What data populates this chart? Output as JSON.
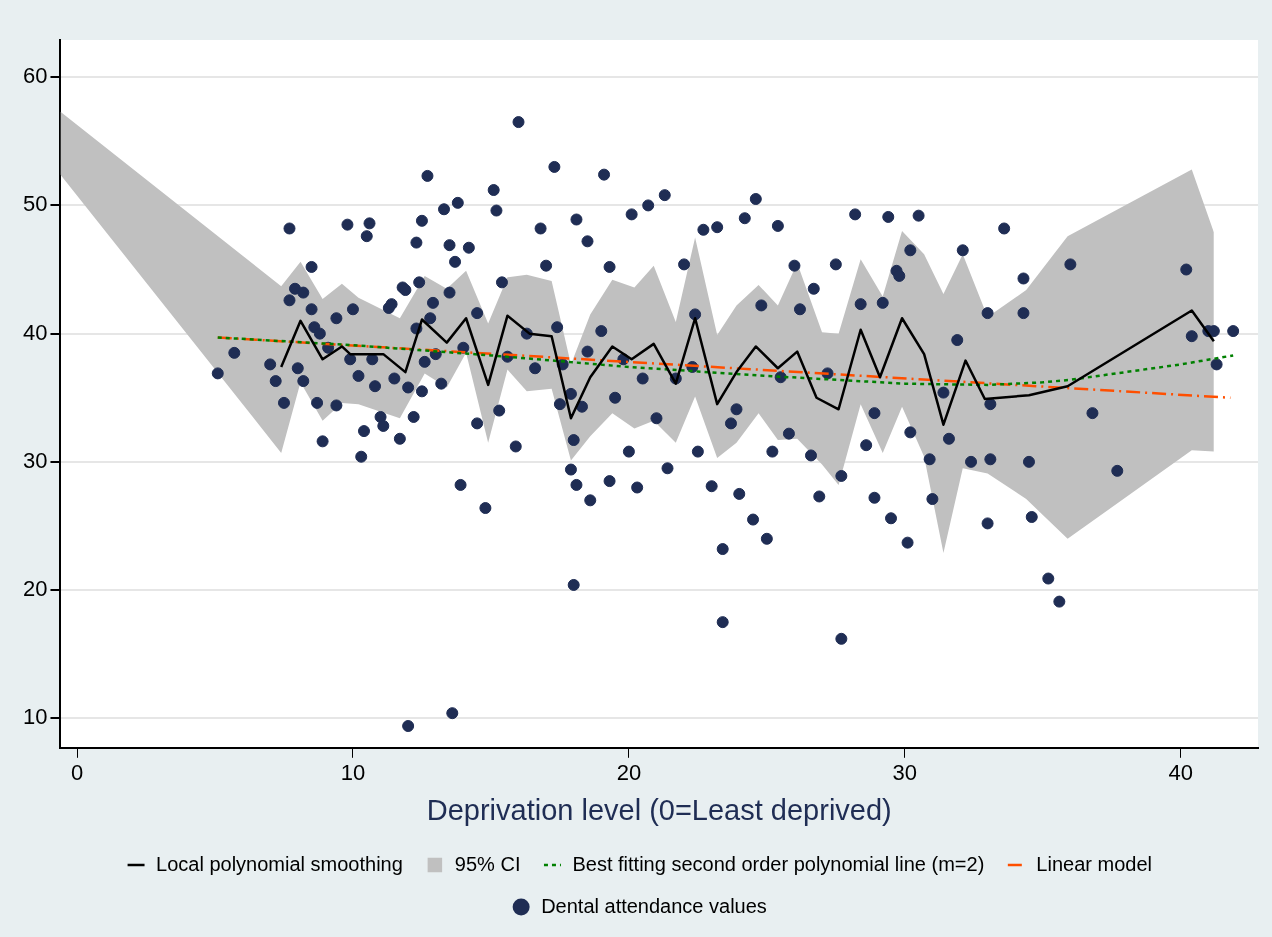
{
  "chart_data": {
    "type": "scatter",
    "xlabel": "Deprivation level (0=Least deprived)",
    "xlim": [
      -0.6,
      42.8
    ],
    "ylim": [
      7.7,
      62.9
    ],
    "xticks": [
      0,
      10,
      20,
      30,
      40
    ],
    "yticks": [
      10,
      20,
      30,
      40,
      50,
      60
    ],
    "grid": "y",
    "legend": "bottom",
    "series": [
      {
        "name": "Local polynomial smoothing",
        "type": "line",
        "color": "#000000",
        "line_style": "solid",
        "x": [
          7.4,
          8.1,
          8.9,
          9.6,
          9.9,
          11.1,
          11.9,
          12.5,
          13.4,
          14.1,
          14.9,
          15.6,
          16.4,
          17.2,
          17.9,
          18.6,
          19.4,
          20.1,
          20.9,
          21.7,
          22.4,
          23.2,
          23.9,
          24.6,
          25.4,
          26.1,
          26.8,
          27.6,
          28.4,
          29.1,
          29.9,
          30.7,
          31.4,
          32.2,
          32.9,
          34.5,
          35.9,
          40.4,
          41.2
        ],
        "values": [
          37.4,
          41.0,
          38.0,
          39.0,
          38.4,
          38.4,
          37.0,
          41.1,
          39.3,
          41.2,
          36.0,
          41.4,
          40.0,
          39.8,
          33.4,
          36.6,
          39.0,
          38.0,
          39.2,
          36.1,
          41.2,
          34.5,
          37.0,
          39.0,
          37.3,
          38.6,
          35.0,
          34.1,
          40.3,
          36.6,
          41.2,
          38.4,
          32.9,
          37.9,
          34.9,
          35.2,
          35.9,
          41.8,
          39.4
        ]
      },
      {
        "name": "95% CI",
        "type": "area",
        "color": "#c0c0c0",
        "values": [
          null,
          null,
          null,
          null,
          null,
          null,
          null,
          null,
          null,
          null,
          null,
          null,
          null,
          null,
          null,
          null,
          null,
          null,
          null,
          null,
          null,
          null,
          null,
          null,
          null,
          null,
          null,
          null,
          null,
          null,
          null,
          null,
          null,
          null,
          null,
          null,
          null,
          null,
          null
        ],
        "x": [
          -0.6,
          7.4,
          8.1,
          8.9,
          9.6,
          10.2,
          11.7,
          12.6,
          13.4,
          14.1,
          14.9,
          15.6,
          16.3,
          17.2,
          17.9,
          18.6,
          19.4,
          20.2,
          20.9,
          21.7,
          22.4,
          23.2,
          23.9,
          24.7,
          25.4,
          26.1,
          27.0,
          27.6,
          28.4,
          29.2,
          29.9,
          30.7,
          31.4,
          32.1,
          33.0,
          34.4,
          35.9,
          40.4,
          41.2
        ],
        "upper": [
          57.3,
          43.7,
          45.6,
          42.7,
          43.9,
          42.8,
          41.2,
          44.5,
          43.5,
          44.9,
          40.8,
          44.4,
          44.6,
          44.1,
          37.6,
          41.5,
          44.2,
          43.6,
          45.3,
          40.9,
          47.5,
          39.9,
          42.2,
          43.8,
          42.2,
          45.5,
          40.1,
          40.0,
          45.8,
          42.9,
          48.0,
          46.2,
          43.1,
          46.2,
          41.3,
          43.4,
          47.6,
          52.8,
          47.9
        ],
        "lower": [
          52.4,
          30.7,
          36.2,
          33.2,
          34.6,
          34.5,
          33.4,
          36.9,
          35.8,
          38.5,
          31.5,
          37.2,
          35.5,
          35.7,
          30.1,
          32.0,
          33.8,
          32.6,
          33.2,
          31.5,
          35.1,
          30.3,
          31.5,
          33.8,
          31.7,
          31.8,
          29.8,
          28.2,
          34.5,
          30.7,
          34.3,
          30.4,
          22.9,
          29.5,
          29.1,
          27.1,
          24.0,
          30.9,
          30.8
        ]
      },
      {
        "name": "Best fitting second order polynomial line (m=2)",
        "type": "line",
        "color": "#008000",
        "line_style": "dotted",
        "x": [
          5.1,
          10,
          15,
          20,
          25,
          30,
          33,
          35,
          36,
          38,
          40,
          41.9
        ],
        "values": [
          39.7,
          39.1,
          38.3,
          37.4,
          36.7,
          36.1,
          36.0,
          36.2,
          36.4,
          37.0,
          37.6,
          38.3
        ]
      },
      {
        "name": "Linear model",
        "type": "line",
        "color": "#ff4f00",
        "line_style": "dashed",
        "x": [
          5.1,
          41.8
        ],
        "values": [
          39.7,
          35.0
        ]
      },
      {
        "name": "Dental attendance values",
        "color": "#1f2d54",
        "marker": "circle",
        "x": [
          5.1,
          5.7,
          7.0,
          7.2,
          7.5,
          7.7,
          7.9,
          7.7,
          8.0,
          8.2,
          8.2,
          8.5,
          8.5,
          8.6,
          8.7,
          8.8,
          8.9,
          9.1,
          9.4,
          9.4,
          9.8,
          9.9,
          10.0,
          10.2,
          10.3,
          10.4,
          10.5,
          10.6,
          10.7,
          10.8,
          11.0,
          11.1,
          11.3,
          11.4,
          11.5,
          11.7,
          11.8,
          11.9,
          12.0,
          12.2,
          12.3,
          12.4,
          12.5,
          12.6,
          12.0,
          12.3,
          12.5,
          12.7,
          12.8,
          12.9,
          13.0,
          13.2,
          13.3,
          13.5,
          13.5,
          13.6,
          13.7,
          13.8,
          13.9,
          14.0,
          14.2,
          14.5,
          14.5,
          14.8,
          15.1,
          15.2,
          15.4,
          15.3,
          15.6,
          15.9,
          16.0,
          16.3,
          16.6,
          16.8,
          17.0,
          17.3,
          17.4,
          17.5,
          17.6,
          17.9,
          17.9,
          18.0,
          18.0,
          18.1,
          18.1,
          18.3,
          18.5,
          18.5,
          18.6,
          19.0,
          19.1,
          19.3,
          19.3,
          19.5,
          19.8,
          20.0,
          20.1,
          20.3,
          20.5,
          20.7,
          21.0,
          21.3,
          21.4,
          21.7,
          22.0,
          22.3,
          22.4,
          22.5,
          22.7,
          23.0,
          23.2,
          23.4,
          23.4,
          23.7,
          23.9,
          24.0,
          24.2,
          24.5,
          24.6,
          24.8,
          25.0,
          25.2,
          25.4,
          25.5,
          25.8,
          26.0,
          26.2,
          26.6,
          26.7,
          26.9,
          27.2,
          27.5,
          27.7,
          27.7,
          28.2,
          28.4,
          28.6,
          28.9,
          28.9,
          29.2,
          29.4,
          29.5,
          29.7,
          29.8,
          30.1,
          30.2,
          30.2,
          30.5,
          30.9,
          31.0,
          31.4,
          31.6,
          31.9,
          32.1,
          32.4,
          33.0,
          33.1,
          33.0,
          33.1,
          33.6,
          34.3,
          34.3,
          34.5,
          34.6,
          35.2,
          35.6,
          36.0,
          36.8,
          37.7,
          40.2,
          40.4,
          41.0,
          41.2,
          41.3,
          41.9
        ],
        "values": [
          36.9,
          38.5,
          37.6,
          36.3,
          34.6,
          48.2,
          43.5,
          42.6,
          37.3,
          43.2,
          36.3,
          45.2,
          41.9,
          40.5,
          34.6,
          40.0,
          31.6,
          38.9,
          34.4,
          41.2,
          48.5,
          38.0,
          41.9,
          36.7,
          30.4,
          32.4,
          47.6,
          48.6,
          38.0,
          35.9,
          33.5,
          32.8,
          42.0,
          42.3,
          36.5,
          31.8,
          43.6,
          43.4,
          35.8,
          33.5,
          40.4,
          44.0,
          35.5,
          37.8,
          9.4,
          47.1,
          48.8,
          52.3,
          41.2,
          42.4,
          38.4,
          36.1,
          49.7,
          46.9,
          43.2,
          10.4,
          45.6,
          50.2,
          28.2,
          38.9,
          46.7,
          41.6,
          33.0,
          26.4,
          51.2,
          49.6,
          44.0,
          34.0,
          38.2,
          31.2,
          56.5,
          40.0,
          37.3,
          48.2,
          45.3,
          53.0,
          40.5,
          34.5,
          37.6,
          35.3,
          29.4,
          31.7,
          20.4,
          28.2,
          48.9,
          34.3,
          47.2,
          38.6,
          27.0,
          40.2,
          52.4,
          45.2,
          28.5,
          35.0,
          38.0,
          30.8,
          49.3,
          28.0,
          36.5,
          50.0,
          33.4,
          50.8,
          29.5,
          36.5,
          45.4,
          37.4,
          41.5,
          30.8,
          48.1,
          28.1,
          48.3,
          23.2,
          17.5,
          33.0,
          34.1,
          27.5,
          49.0,
          25.5,
          50.5,
          42.2,
          24.0,
          30.8,
          48.4,
          36.6,
          32.2,
          45.3,
          41.9,
          30.5,
          43.5,
          27.3,
          36.9,
          45.4,
          16.2,
          28.9,
          49.3,
          42.3,
          31.3,
          27.2,
          33.8,
          42.4,
          49.1,
          25.6,
          44.9,
          44.5,
          23.7,
          32.3,
          46.5,
          49.2,
          30.2,
          27.1,
          35.4,
          31.8,
          39.5,
          46.5,
          30.0,
          41.6,
          34.5,
          25.2,
          30.2,
          48.2,
          44.3,
          41.6,
          30.0,
          25.7,
          20.9,
          19.1,
          45.4,
          33.8,
          29.3,
          45.0,
          39.8,
          40.2,
          40.2,
          37.6,
          40.2
        ]
      }
    ]
  }
}
